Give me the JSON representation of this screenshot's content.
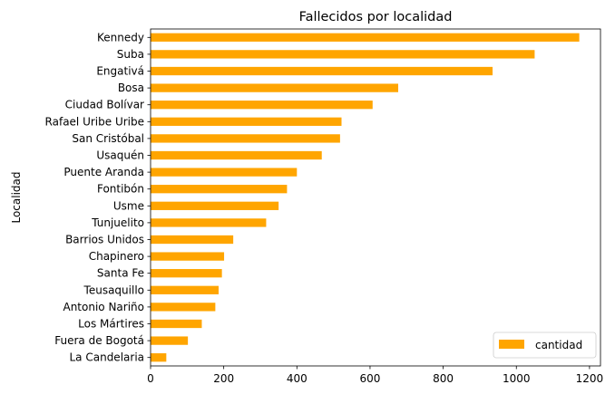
{
  "chart_data": {
    "type": "bar",
    "orientation": "horizontal",
    "title": "Fallecidos por localidad",
    "xlabel": "",
    "ylabel": "Localidad",
    "xlim": [
      0,
      1230
    ],
    "xticks": [
      0,
      200,
      400,
      600,
      800,
      1000,
      1200
    ],
    "grid": false,
    "legend_position": "bottom-right",
    "bar_color": "#ffa500",
    "categories": [
      "Kennedy",
      "Suba",
      "Engativá",
      "Bosa",
      "Ciudad Bolívar",
      "Rafael Uribe Uribe",
      "San Cristóbal",
      "Usaquén",
      "Puente Aranda",
      "Fontibón",
      "Usme",
      "Tunjuelito",
      "Barrios Unidos",
      "Chapinero",
      "Santa Fe",
      "Teusaquillo",
      "Antonio Nariño",
      "Los Mártires",
      "Fuera de Bogotá",
      "La Candelaria"
    ],
    "series": [
      {
        "name": "cantidad",
        "values": [
          1172,
          1050,
          935,
          677,
          607,
          522,
          518,
          468,
          400,
          373,
          350,
          316,
          226,
          201,
          195,
          186,
          177,
          140,
          102,
          43
        ]
      }
    ]
  }
}
